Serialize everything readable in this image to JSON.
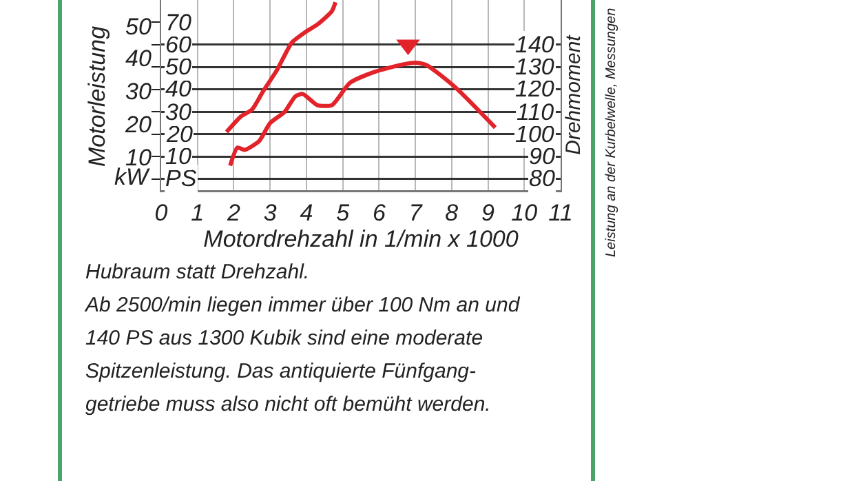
{
  "chart_data": {
    "type": "line",
    "xlabel": "Motordrehzahl in 1/min x 1000",
    "ylabel": "Motorleistung",
    "y2label": "Drehmoment",
    "annotations": [
      "Hubraum statt Drehzahl.\nAb 2500/min liegen immer über 100 Nm an und\n140 PS aus 1300 Kubik sind eine moderate\nSpitzenleistung. Das antiquierte Fünfgang-\ngetriebe muss also  nicht oft bemüht werden.",
      "Leistung an der Kurbelwelle, Messungen"
    ],
    "xlim": [
      0,
      11
    ],
    "xticks": [
      0,
      1,
      2,
      3,
      4,
      5,
      6,
      7,
      8,
      9,
      10,
      11
    ],
    "ylim": [
      -5,
      80
    ],
    "yticks": [
      {
        "value": 0,
        "label": "PS"
      },
      10,
      20,
      30,
      40,
      50,
      60,
      70
    ],
    "y2lim": [
      75,
      160
    ],
    "y2ticks": [
      80,
      90,
      100,
      110,
      120,
      130,
      140
    ],
    "y3lim": [
      0,
      58
    ],
    "y3ticks": [
      {
        "value": 4,
        "label": "kW"
      },
      10,
      20,
      30,
      40,
      50
    ],
    "grid": true,
    "marker": "none",
    "line_style": "solid",
    "series": [
      {
        "color": "#e2232a",
        "x": [
          1.8,
          2.2,
          2.5,
          2.8,
          3.2,
          3.6,
          4.0,
          4.3,
          4.7,
          4.8
        ],
        "values": [
          21,
          28,
          31,
          39,
          49,
          61,
          66,
          69,
          75,
          79
        ]
      },
      {
        "color": "#e2232a",
        "axis": "y2",
        "x": [
          1.9,
          2.1,
          2.3,
          2.7,
          3.0,
          3.4,
          3.7,
          3.9,
          4.3,
          4.7,
          5.2,
          5.9,
          6.6,
          7.0,
          7.3,
          8.1,
          9.2
        ],
        "values": [
          86,
          94,
          93,
          97,
          105,
          110,
          117,
          118,
          113,
          113,
          123,
          128,
          131,
          132,
          131,
          121,
          103
        ]
      },
      {
        "type": "scatter",
        "marker": "triangle",
        "color": "#e2232a",
        "axis": "y2",
        "x": [
          6.8
        ],
        "values": [
          140
        ]
      }
    ]
  }
}
